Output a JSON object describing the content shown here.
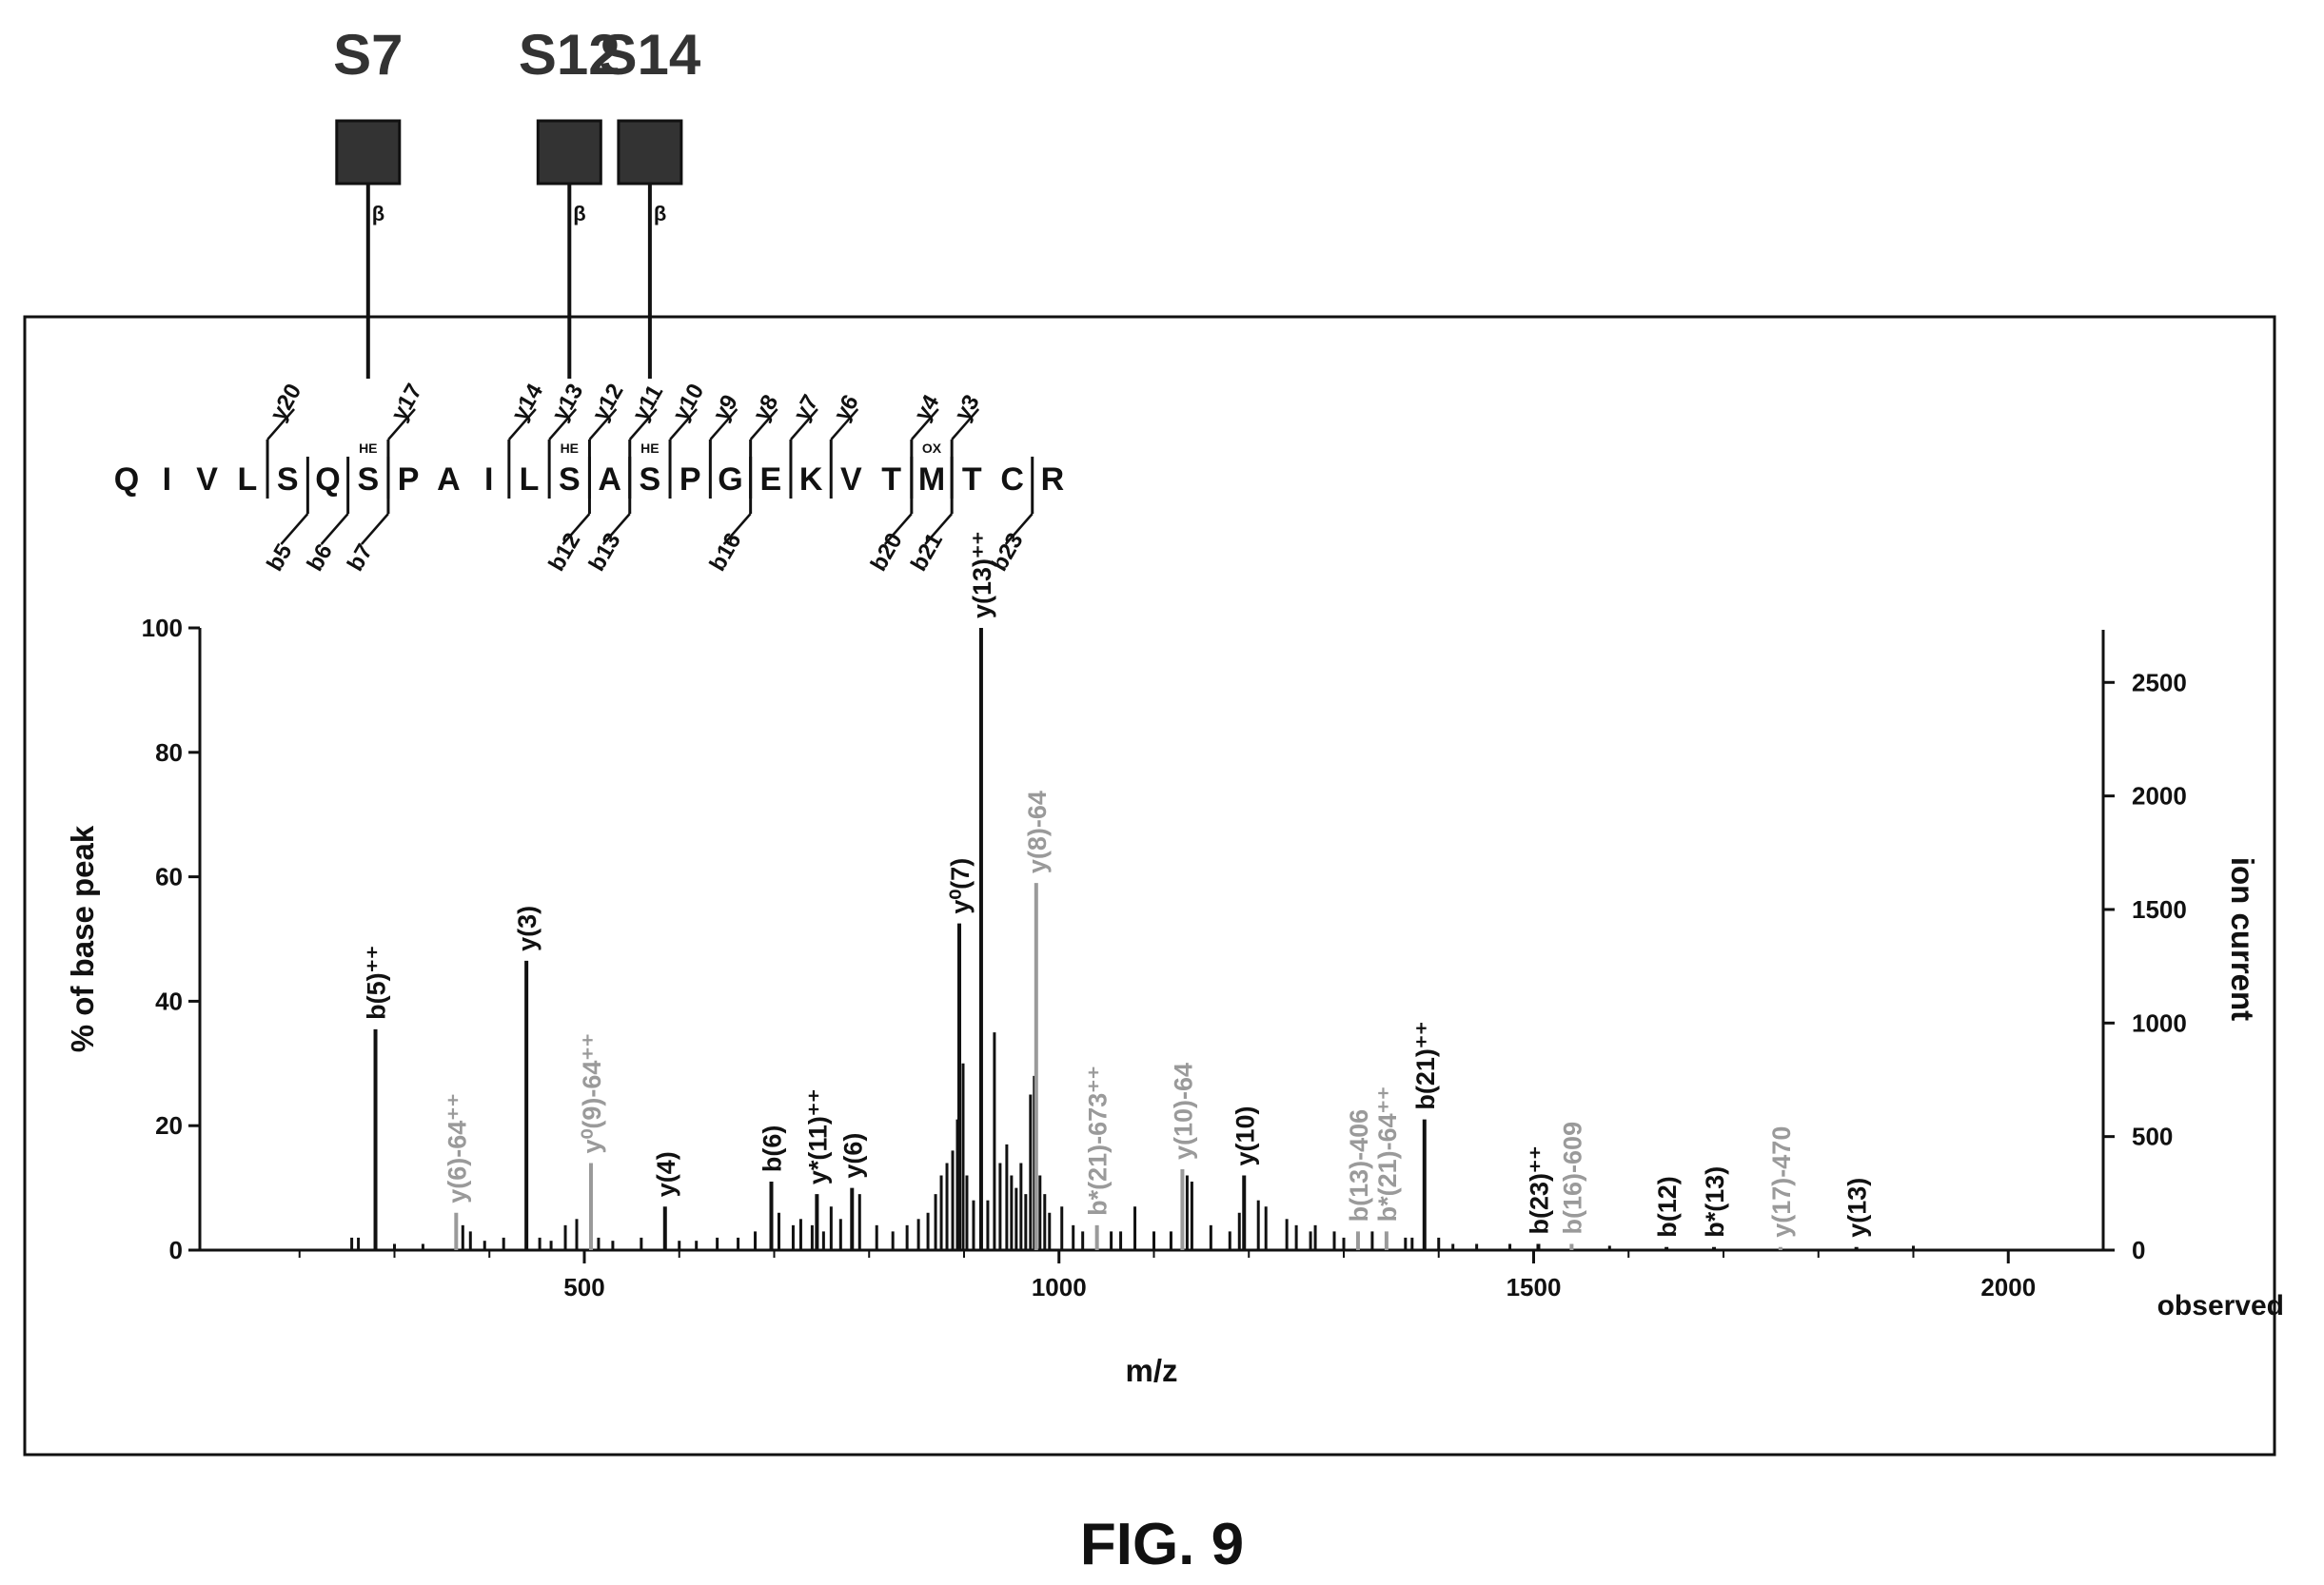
{
  "figure": {
    "caption": "FIG. 9"
  },
  "glycosites": [
    {
      "label": "S7",
      "residue_index": 6,
      "bond": "β"
    },
    {
      "label": "S12",
      "residue_index": 11,
      "bond": "β"
    },
    {
      "label": "S14",
      "residue_index": 13,
      "bond": "β"
    }
  ],
  "sequence": {
    "residues": [
      "Q",
      "I",
      "V",
      "L",
      "S",
      "Q",
      "S",
      "P",
      "A",
      "I",
      "L",
      "S",
      "A",
      "S",
      "P",
      "G",
      "E",
      "K",
      "V",
      "T",
      "M",
      "T",
      "C",
      "R"
    ],
    "modifications": [
      {
        "residue_index": 6,
        "label": "HE"
      },
      {
        "residue_index": 11,
        "label": "HE"
      },
      {
        "residue_index": 13,
        "label": "HE"
      },
      {
        "residue_index": 20,
        "label": "OX"
      }
    ],
    "y_ions": [
      {
        "label": "y20",
        "after_residue": 3
      },
      {
        "label": "y17",
        "after_residue": 6
      },
      {
        "label": "y14",
        "after_residue": 9
      },
      {
        "label": "y13",
        "after_residue": 10
      },
      {
        "label": "y12",
        "after_residue": 11
      },
      {
        "label": "y11",
        "after_residue": 12
      },
      {
        "label": "y10",
        "after_residue": 13
      },
      {
        "label": "y9",
        "after_residue": 14
      },
      {
        "label": "y8",
        "after_residue": 15
      },
      {
        "label": "y7",
        "after_residue": 16
      },
      {
        "label": "y6",
        "after_residue": 17
      },
      {
        "label": "y4",
        "after_residue": 19
      },
      {
        "label": "y3",
        "after_residue": 20
      }
    ],
    "b_ions": [
      {
        "label": "b5",
        "after_residue": 4
      },
      {
        "label": "b6",
        "after_residue": 5
      },
      {
        "label": "b7",
        "after_residue": 6
      },
      {
        "label": "b12",
        "after_residue": 11
      },
      {
        "label": "b13",
        "after_residue": 12
      },
      {
        "label": "b16",
        "after_residue": 15
      },
      {
        "label": "b20",
        "after_residue": 19
      },
      {
        "label": "b21",
        "after_residue": 20
      },
      {
        "label": "b23",
        "after_residue": 22
      }
    ]
  },
  "chart_data": {
    "type": "bar",
    "ylabel": "% of base peak",
    "y2label": "ion current",
    "xlabel": "m/z",
    "x_end_label": "observed",
    "xlim": [
      95,
      2100
    ],
    "ylim": [
      0,
      100
    ],
    "y2lim": [
      0,
      2740
    ],
    "x_ticks": [
      500,
      1000,
      1500,
      2000
    ],
    "x_minor_ticks": [
      200,
      300,
      400,
      600,
      700,
      800,
      900,
      1100,
      1200,
      1300,
      1400,
      1600,
      1700,
      1800,
      1900
    ],
    "y_ticks": [
      0,
      20,
      40,
      60,
      80,
      100
    ],
    "y2_ticks": [
      0,
      500,
      1000,
      1500,
      2000,
      2500
    ],
    "colors": {
      "matched": "#111111",
      "loss": "#9a9a9a",
      "noise": "#111111"
    },
    "peaks": [
      {
        "mz": 280,
        "intensity": 35.5,
        "label": "b(5)⁺⁺",
        "color": "#111111"
      },
      {
        "mz": 365,
        "intensity": 6,
        "label": "y(6)-64⁺⁺",
        "color": "#9a9a9a"
      },
      {
        "mz": 439,
        "intensity": 46.5,
        "label": "y(3)",
        "color": "#111111"
      },
      {
        "mz": 507,
        "intensity": 14,
        "label": "y⁰(9)-64⁺⁺",
        "color": "#9a9a9a"
      },
      {
        "mz": 585,
        "intensity": 7,
        "label": "y(4)",
        "color": "#111111"
      },
      {
        "mz": 697,
        "intensity": 11,
        "label": "b(6)",
        "color": "#111111"
      },
      {
        "mz": 745,
        "intensity": 9,
        "label": "y*(11)⁺⁺",
        "color": "#111111"
      },
      {
        "mz": 782,
        "intensity": 10,
        "label": "y(6)",
        "color": "#111111"
      },
      {
        "mz": 895,
        "intensity": 52.5,
        "label": "y⁰(7)",
        "color": "#111111"
      },
      {
        "mz": 918,
        "intensity": 100,
        "label": "y(13)⁺⁺",
        "color": "#111111"
      },
      {
        "mz": 976,
        "intensity": 59,
        "label": "y(8)-64",
        "color": "#9a9a9a"
      },
      {
        "mz": 1040,
        "intensity": 4,
        "label": "b*(21)-673⁺⁺",
        "color": "#9a9a9a"
      },
      {
        "mz": 1130,
        "intensity": 13,
        "label": "y(10)-64",
        "color": "#9a9a9a"
      },
      {
        "mz": 1195,
        "intensity": 12,
        "label": "y(10)",
        "color": "#111111"
      },
      {
        "mz": 1315,
        "intensity": 3,
        "label": "b(13)-406",
        "color": "#9a9a9a"
      },
      {
        "mz": 1345,
        "intensity": 3,
        "label": "b*(21)-64⁺⁺",
        "color": "#9a9a9a"
      },
      {
        "mz": 1385,
        "intensity": 21,
        "label": "b(21)⁺⁺",
        "color": "#111111"
      },
      {
        "mz": 1505,
        "intensity": 1,
        "label": "b(23)⁺⁺",
        "color": "#111111"
      },
      {
        "mz": 1540,
        "intensity": 1,
        "label": "b(16)-609",
        "color": "#9a9a9a"
      },
      {
        "mz": 1640,
        "intensity": 0.5,
        "label": "b(12)",
        "color": "#111111"
      },
      {
        "mz": 1690,
        "intensity": 0.5,
        "label": "b*(13)",
        "color": "#111111"
      },
      {
        "mz": 1760,
        "intensity": 0.5,
        "label": "y(17)-470",
        "color": "#9a9a9a"
      },
      {
        "mz": 1840,
        "intensity": 0.5,
        "label": "y(13)",
        "color": "#111111"
      }
    ],
    "unlabeled_peaks": [
      [
        255,
        2
      ],
      [
        262,
        2
      ],
      [
        300,
        1
      ],
      [
        330,
        1
      ],
      [
        372,
        4
      ],
      [
        380,
        3
      ],
      [
        395,
        1.5
      ],
      [
        415,
        2
      ],
      [
        453,
        2
      ],
      [
        465,
        1.5
      ],
      [
        480,
        4
      ],
      [
        492,
        5
      ],
      [
        515,
        2
      ],
      [
        530,
        1.5
      ],
      [
        560,
        2
      ],
      [
        600,
        1.5
      ],
      [
        618,
        1.5
      ],
      [
        640,
        2
      ],
      [
        662,
        2
      ],
      [
        680,
        3
      ],
      [
        705,
        6
      ],
      [
        720,
        4
      ],
      [
        728,
        5
      ],
      [
        740,
        4
      ],
      [
        752,
        3
      ],
      [
        760,
        7
      ],
      [
        770,
        5
      ],
      [
        790,
        9
      ],
      [
        808,
        4
      ],
      [
        825,
        3
      ],
      [
        840,
        4
      ],
      [
        852,
        5
      ],
      [
        862,
        6
      ],
      [
        870,
        9
      ],
      [
        876,
        12
      ],
      [
        882,
        14
      ],
      [
        888,
        16
      ],
      [
        893,
        21
      ],
      [
        899,
        30
      ],
      [
        903,
        12
      ],
      [
        910,
        8
      ],
      [
        925,
        8
      ],
      [
        932,
        35
      ],
      [
        938,
        14
      ],
      [
        945,
        17
      ],
      [
        950,
        12
      ],
      [
        955,
        10
      ],
      [
        960,
        14
      ],
      [
        965,
        9
      ],
      [
        970,
        25
      ],
      [
        974,
        28
      ],
      [
        980,
        12
      ],
      [
        985,
        9
      ],
      [
        990,
        6
      ],
      [
        1003,
        7
      ],
      [
        1015,
        4
      ],
      [
        1025,
        3
      ],
      [
        1055,
        3
      ],
      [
        1065,
        3
      ],
      [
        1080,
        7
      ],
      [
        1100,
        3
      ],
      [
        1118,
        3
      ],
      [
        1135,
        12
      ],
      [
        1140,
        11
      ],
      [
        1160,
        4
      ],
      [
        1180,
        3
      ],
      [
        1190,
        6
      ],
      [
        1210,
        8
      ],
      [
        1218,
        7
      ],
      [
        1240,
        5
      ],
      [
        1250,
        4
      ],
      [
        1265,
        3
      ],
      [
        1270,
        4
      ],
      [
        1290,
        3
      ],
      [
        1300,
        2
      ],
      [
        1330,
        3
      ],
      [
        1365,
        2
      ],
      [
        1372,
        2
      ],
      [
        1400,
        2
      ],
      [
        1415,
        1
      ],
      [
        1440,
        1
      ],
      [
        1475,
        1
      ],
      [
        1580,
        0.7
      ],
      [
        1900,
        0.7
      ]
    ]
  }
}
